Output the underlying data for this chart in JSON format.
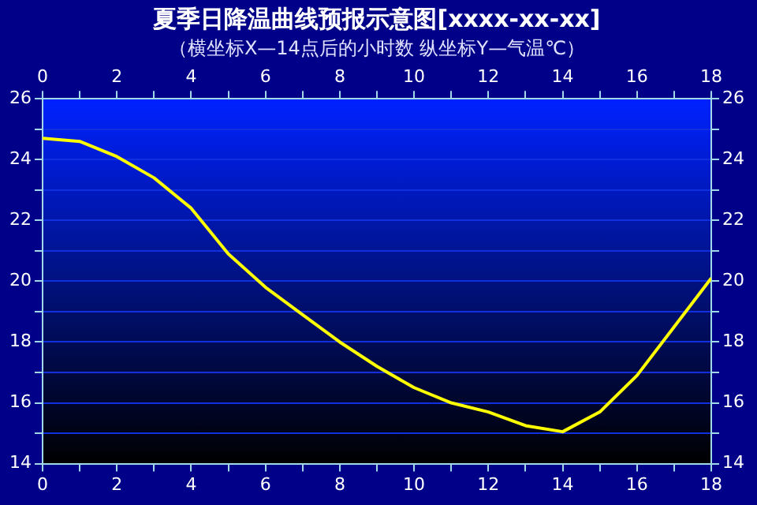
{
  "chart_data": {
    "type": "line",
    "title": "夏季日降温曲线预报示意图[xxxx-xx-xx]",
    "subtitle": "（横坐标X—14点后的小时数 纵坐标Y—气温℃）",
    "x": [
      0,
      1,
      2,
      3,
      4,
      5,
      6,
      7,
      8,
      9,
      10,
      11,
      12,
      13,
      14,
      15,
      16,
      17,
      18
    ],
    "series": [
      {
        "color": "#ffff00",
        "values": [
          24.7,
          24.6,
          24.1,
          23.4,
          22.4,
          20.9,
          19.8,
          18.9,
          18.0,
          17.2,
          16.5,
          16.0,
          15.7,
          15.25,
          15.05,
          15.7,
          16.9,
          18.5,
          20.1
        ]
      }
    ],
    "xlim": [
      0,
      18
    ],
    "xticks": [
      0,
      {
        "value": 1,
        "label": null
      },
      2,
      {
        "value": 3,
        "label": null
      },
      4,
      {
        "value": 5,
        "label": null
      },
      6,
      {
        "value": 7,
        "label": null
      },
      8,
      {
        "value": 9,
        "label": null
      },
      10,
      {
        "value": 11,
        "label": null
      },
      12,
      {
        "value": 13,
        "label": null
      },
      14,
      {
        "value": 15,
        "label": null
      },
      16,
      {
        "value": 17,
        "label": null
      },
      18
    ],
    "x2lim": [
      0,
      18
    ],
    "x2ticks": [
      0,
      {
        "value": 1,
        "label": null
      },
      2,
      {
        "value": 3,
        "label": null
      },
      4,
      {
        "value": 5,
        "label": null
      },
      6,
      {
        "value": 7,
        "label": null
      },
      8,
      {
        "value": 9,
        "label": null
      },
      10,
      {
        "value": 11,
        "label": null
      },
      12,
      {
        "value": 13,
        "label": null
      },
      14,
      {
        "value": 15,
        "label": null
      },
      16,
      {
        "value": 17,
        "label": null
      },
      18
    ],
    "ylim": [
      14,
      26
    ],
    "yticks": [
      14,
      {
        "value": 15,
        "label": null
      },
      16,
      {
        "value": 17,
        "label": null
      },
      18,
      {
        "value": 19,
        "label": null
      },
      20,
      {
        "value": 21,
        "label": null
      },
      22,
      {
        "value": 23,
        "label": null
      },
      24,
      {
        "value": 25,
        "label": null
      },
      26
    ],
    "y2lim": [
      14,
      26
    ],
    "y2ticks": [
      14,
      {
        "value": 15,
        "label": null
      },
      16,
      {
        "value": 17,
        "label": null
      },
      18,
      {
        "value": 19,
        "label": null
      },
      20,
      {
        "value": 21,
        "label": null
      },
      22,
      {
        "value": 23,
        "label": null
      },
      24,
      {
        "value": 25,
        "label": null
      },
      26
    ],
    "grid": "y",
    "legend": false,
    "marker": "none",
    "line_style": "solid"
  }
}
